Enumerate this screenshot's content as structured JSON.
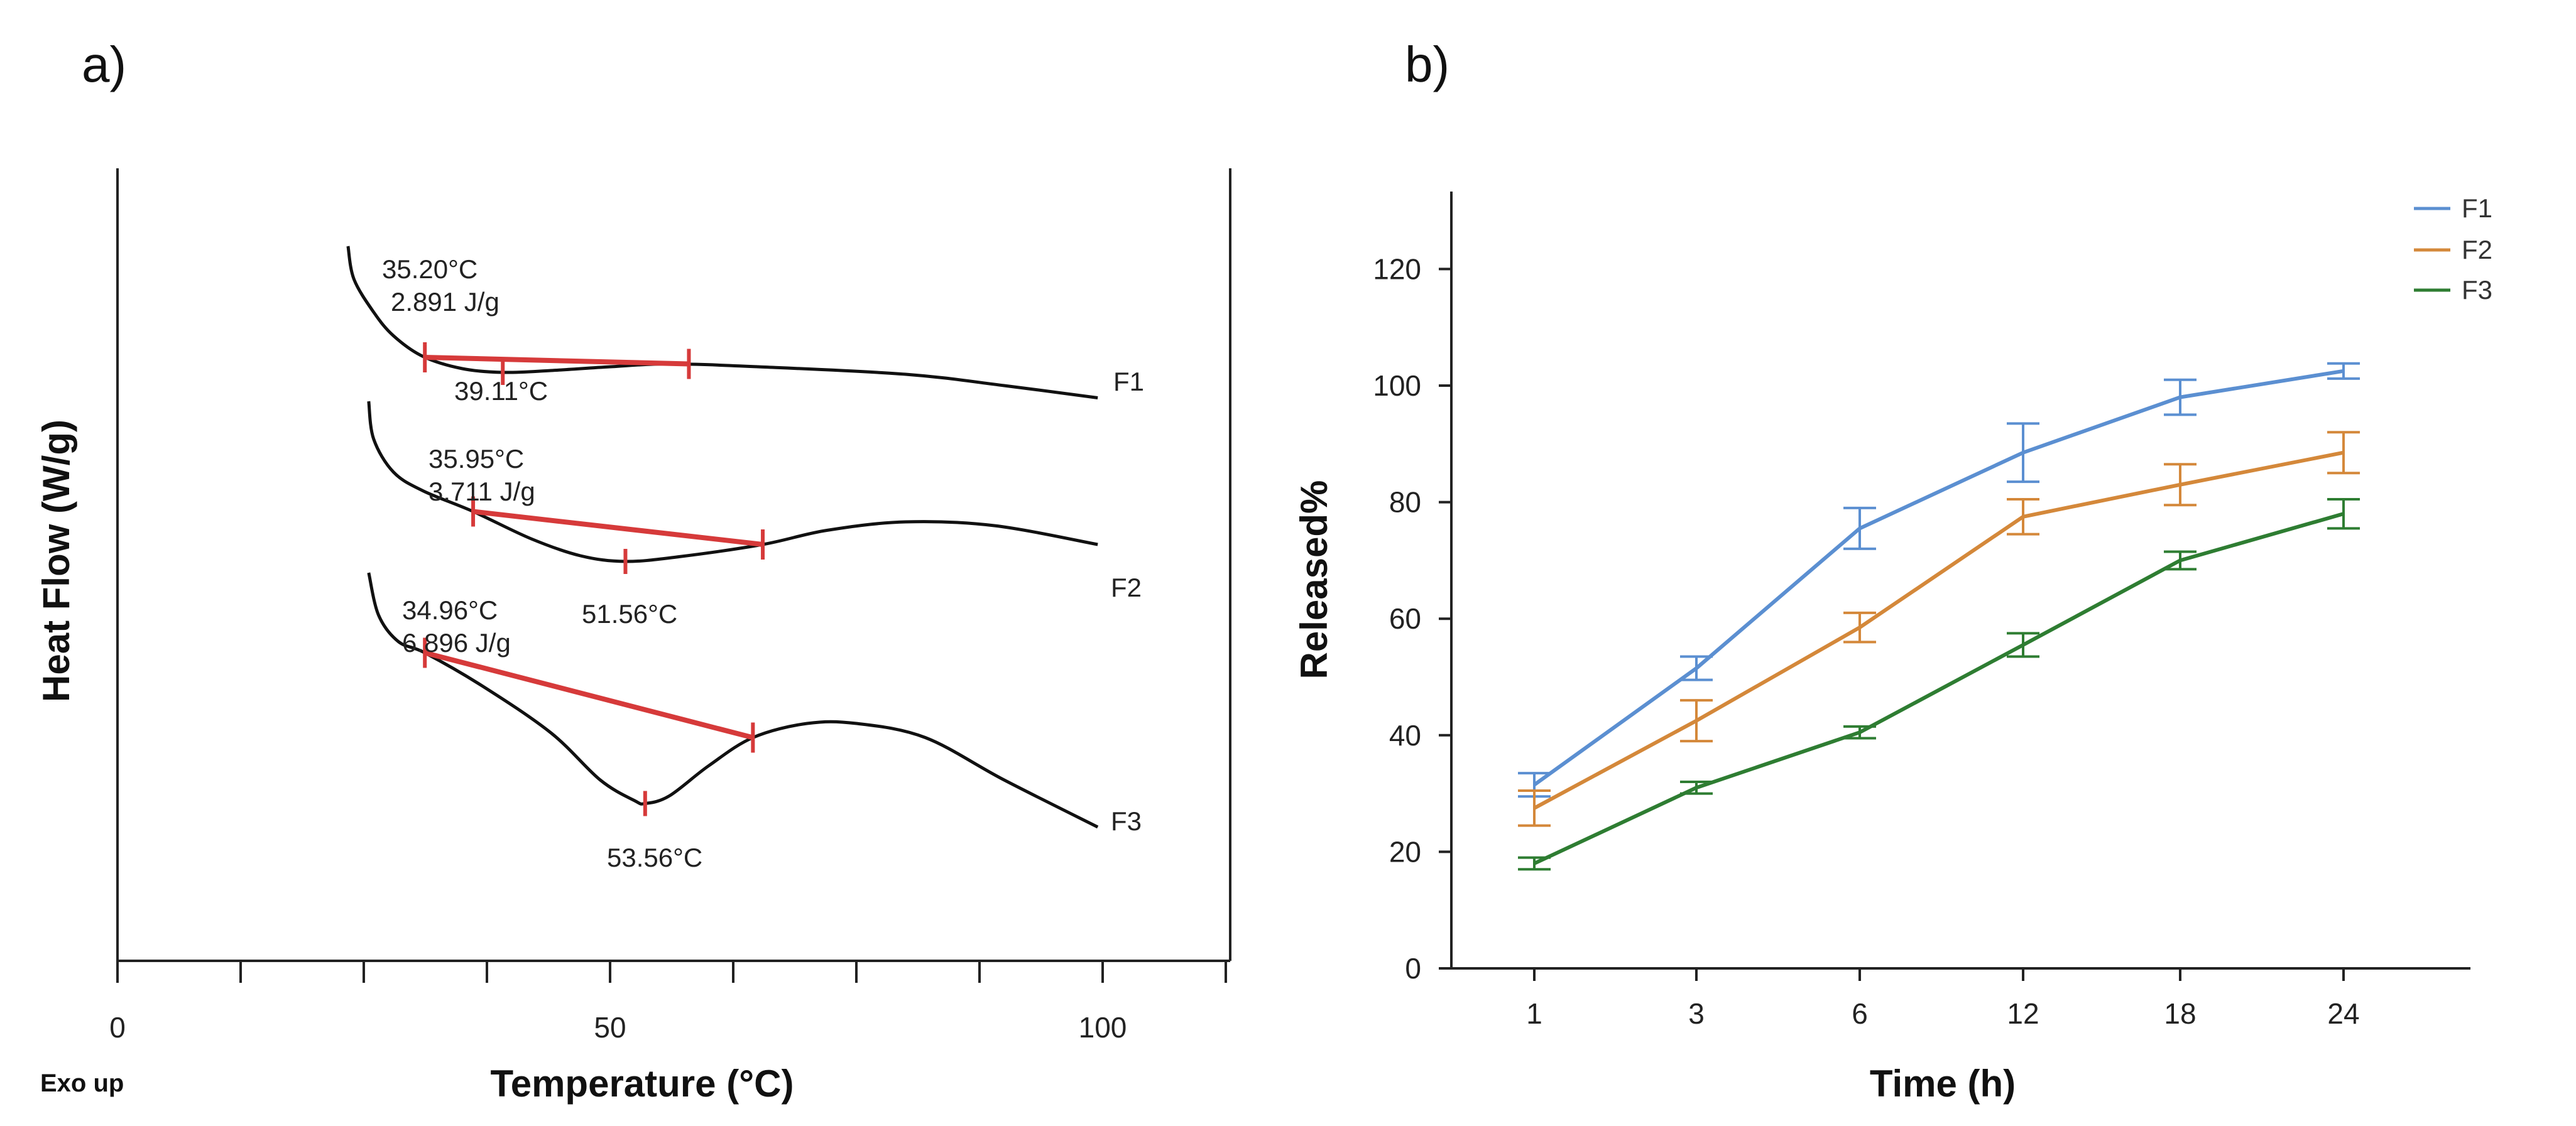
{
  "panels": {
    "a_label": "a)",
    "b_label": "b)"
  },
  "chart_data": [
    {
      "type": "line",
      "panel": "a)",
      "xlabel": "Temperature (°C)",
      "ylabel": "Heat Flow (W/g)",
      "xlim": [
        0,
        113
      ],
      "x_ticks": [
        0,
        50,
        100
      ],
      "corner_label": "Exo up",
      "series": [
        {
          "name": "F1",
          "points": [
            [
              23.4,
              1.3
            ],
            [
              24,
              0.95
            ],
            [
              26,
              0.6
            ],
            [
              28,
              0.35
            ],
            [
              31,
              0.13
            ],
            [
              35,
              0.0
            ],
            [
              39.11,
              -0.04
            ],
            [
              44,
              -0.02
            ],
            [
              50,
              0.02
            ],
            [
              56,
              0.05
            ],
            [
              65,
              0.02
            ],
            [
              80,
              -0.06
            ],
            [
              90,
              -0.18
            ],
            [
              99.5,
              -0.31
            ]
          ],
          "onset": {
            "x": 31.2,
            "y": 0.12,
            "text_temp": "35.20°C",
            "text_enthalpy": "2.891 J/g"
          },
          "peak": {
            "x": 39.11,
            "y": -0.04,
            "text": "39.11°C"
          },
          "endset": {
            "x": 58,
            "y": 0.05
          }
        },
        {
          "name": "F2",
          "points": [
            [
              25.5,
              1.1
            ],
            [
              26,
              0.7
            ],
            [
              28,
              0.35
            ],
            [
              31,
              0.15
            ],
            [
              36.1,
              -0.07
            ],
            [
              42,
              -0.36
            ],
            [
              47,
              -0.54
            ],
            [
              51.56,
              -0.6
            ],
            [
              57,
              -0.55
            ],
            [
              65.5,
              -0.42
            ],
            [
              72,
              -0.27
            ],
            [
              80,
              -0.18
            ],
            [
              89,
              -0.22
            ],
            [
              99.5,
              -0.42
            ]
          ],
          "onset": {
            "x": 36.1,
            "y": -0.07,
            "text_temp": "35.95°C",
            "text_enthalpy": "3.711 J/g"
          },
          "peak": {
            "x": 51.56,
            "y": -0.6,
            "text": "51.56°C"
          },
          "endset": {
            "x": 65.5,
            "y": -0.42
          }
        },
        {
          "name": "F3",
          "points": [
            [
              25.5,
              1.0
            ],
            [
              26.5,
              0.55
            ],
            [
              28.5,
              0.27
            ],
            [
              31.2,
              0.15
            ],
            [
              37,
              -0.2
            ],
            [
              44,
              -0.7
            ],
            [
              49,
              -1.2
            ],
            [
              52.5,
              -1.42
            ],
            [
              53.56,
              -1.45
            ],
            [
              56,
              -1.37
            ],
            [
              60,
              -1.05
            ],
            [
              64.5,
              -0.75
            ],
            [
              70,
              -0.6
            ],
            [
              75,
              -0.6
            ],
            [
              82,
              -0.75
            ],
            [
              90,
              -1.2
            ],
            [
              99.5,
              -1.7
            ]
          ],
          "onset": {
            "x": 31.2,
            "y": 0.15,
            "text_temp": "34.96°C",
            "text_enthalpy": "6.896 J/g"
          },
          "peak": {
            "x": 53.56,
            "y": -1.45,
            "text": "53.56°C"
          },
          "endset": {
            "x": 64.5,
            "y": -0.75
          }
        }
      ],
      "annotations": {
        "F1": {
          "temp": "35.20°C",
          "enthalpy": "2.891 J/g",
          "peak": "39.11°C"
        },
        "F2": {
          "temp": "35.95°C",
          "enthalpy": "3.711 J/g",
          "peak": "51.56°C"
        },
        "F3": {
          "temp": "34.96°C",
          "enthalpy": "6.896 J/g",
          "peak": "53.56°C"
        }
      },
      "colors": {
        "curve": "#111111",
        "baseline": "#d63a3a"
      }
    },
    {
      "type": "line",
      "panel": "b)",
      "xlabel": "Time (h)",
      "ylabel": "Released%",
      "categories": [
        "1",
        "3",
        "6",
        "12",
        "18",
        "24"
      ],
      "ylim": [
        0,
        133
      ],
      "y_ticks": [
        0,
        20,
        40,
        60,
        80,
        100,
        120
      ],
      "legend": "top-right",
      "error_bars": true,
      "series": [
        {
          "name": "F1",
          "color": "#5b8fd1",
          "values": [
            31.5,
            51.5,
            75.5,
            88.5,
            98.0,
            102.5
          ],
          "errors": [
            2.0,
            2.0,
            3.5,
            5.0,
            3.0,
            1.3
          ]
        },
        {
          "name": "F2",
          "color": "#d4883a",
          "values": [
            27.5,
            42.5,
            58.5,
            77.5,
            83.0,
            88.5
          ],
          "errors": [
            3.0,
            3.5,
            2.5,
            3.0,
            3.5,
            3.5
          ]
        },
        {
          "name": "F3",
          "color": "#2e7d32",
          "values": [
            18.0,
            31.0,
            40.5,
            55.5,
            70.0,
            78.0
          ],
          "errors": [
            1.0,
            1.0,
            1.0,
            2.0,
            1.5,
            2.5
          ]
        }
      ]
    }
  ]
}
